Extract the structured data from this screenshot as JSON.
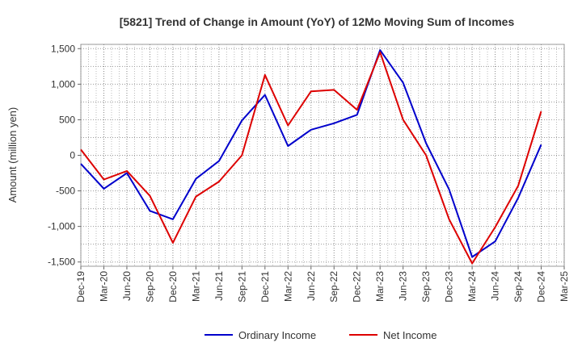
{
  "chart_data": {
    "type": "line",
    "title": "[5821]  Trend of Change in Amount (YoY) of 12Mo Moving Sum of Incomes",
    "xlabel": "",
    "ylabel": "Amount (million yen)",
    "ylim": [
      -1560,
      1560
    ],
    "yticks": [
      1500,
      1000,
      500,
      0,
      -500,
      -1000,
      -1500
    ],
    "ytick_labels": [
      "1,500",
      "1,000",
      "500",
      "0",
      "-500",
      "-1,000",
      "-1,500"
    ],
    "categories": [
      "Dec-19",
      "Mar-20",
      "Jun-20",
      "Sep-20",
      "Dec-20",
      "Mar-21",
      "Jun-21",
      "Sep-21",
      "Dec-21",
      "Mar-22",
      "Jun-22",
      "Sep-22",
      "Dec-22",
      "Mar-23",
      "Jun-23",
      "Sep-23",
      "Dec-23",
      "Mar-24",
      "Jun-24",
      "Sep-24",
      "Dec-24",
      "Mar-25"
    ],
    "grid": true,
    "legend_position": "bottom",
    "series": [
      {
        "name": "Ordinary Income",
        "color": "#0000cc",
        "values": [
          -120,
          -470,
          -250,
          -780,
          -900,
          -330,
          -80,
          490,
          850,
          130,
          360,
          450,
          570,
          1480,
          1020,
          170,
          -480,
          -1430,
          -1210,
          -600,
          150,
          null
        ]
      },
      {
        "name": "Net Income",
        "color": "#dd0000",
        "values": [
          80,
          -340,
          -220,
          -570,
          -1230,
          -580,
          -370,
          0,
          1130,
          420,
          900,
          920,
          640,
          1450,
          500,
          0,
          -900,
          -1520,
          -1010,
          -430,
          620,
          null
        ]
      }
    ]
  }
}
